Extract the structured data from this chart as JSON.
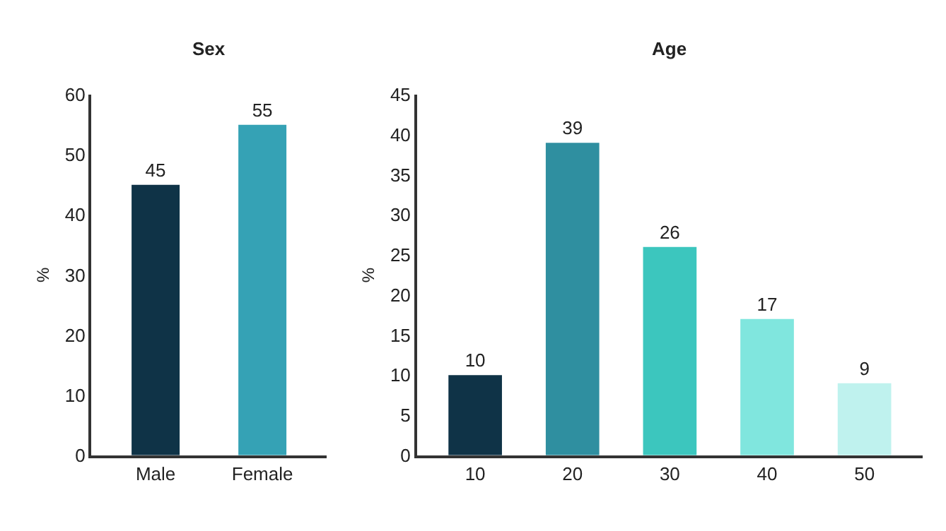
{
  "chart_data": [
    {
      "type": "bar",
      "title": "Sex",
      "ylabel": "%",
      "categories": [
        "Male",
        "Female"
      ],
      "values": [
        45,
        55
      ],
      "colors": [
        "#0f3347",
        "#35a2b5"
      ],
      "ylim": [
        0,
        60
      ],
      "yticks": [
        0,
        10,
        20,
        30,
        40,
        50,
        60
      ],
      "data_labels": true,
      "grid": false
    },
    {
      "type": "bar",
      "title": "Age",
      "ylabel": "%",
      "categories": [
        "10",
        "20",
        "30",
        "40",
        "50"
      ],
      "values": [
        10,
        39,
        26,
        17,
        9
      ],
      "colors": [
        "#0f3347",
        "#2f8fa0",
        "#3cc6be",
        "#80e6de",
        "#bff2ee"
      ],
      "ylim": [
        0,
        45
      ],
      "yticks": [
        0,
        5,
        10,
        15,
        20,
        25,
        30,
        35,
        40,
        45
      ],
      "data_labels": true,
      "grid": false
    }
  ]
}
